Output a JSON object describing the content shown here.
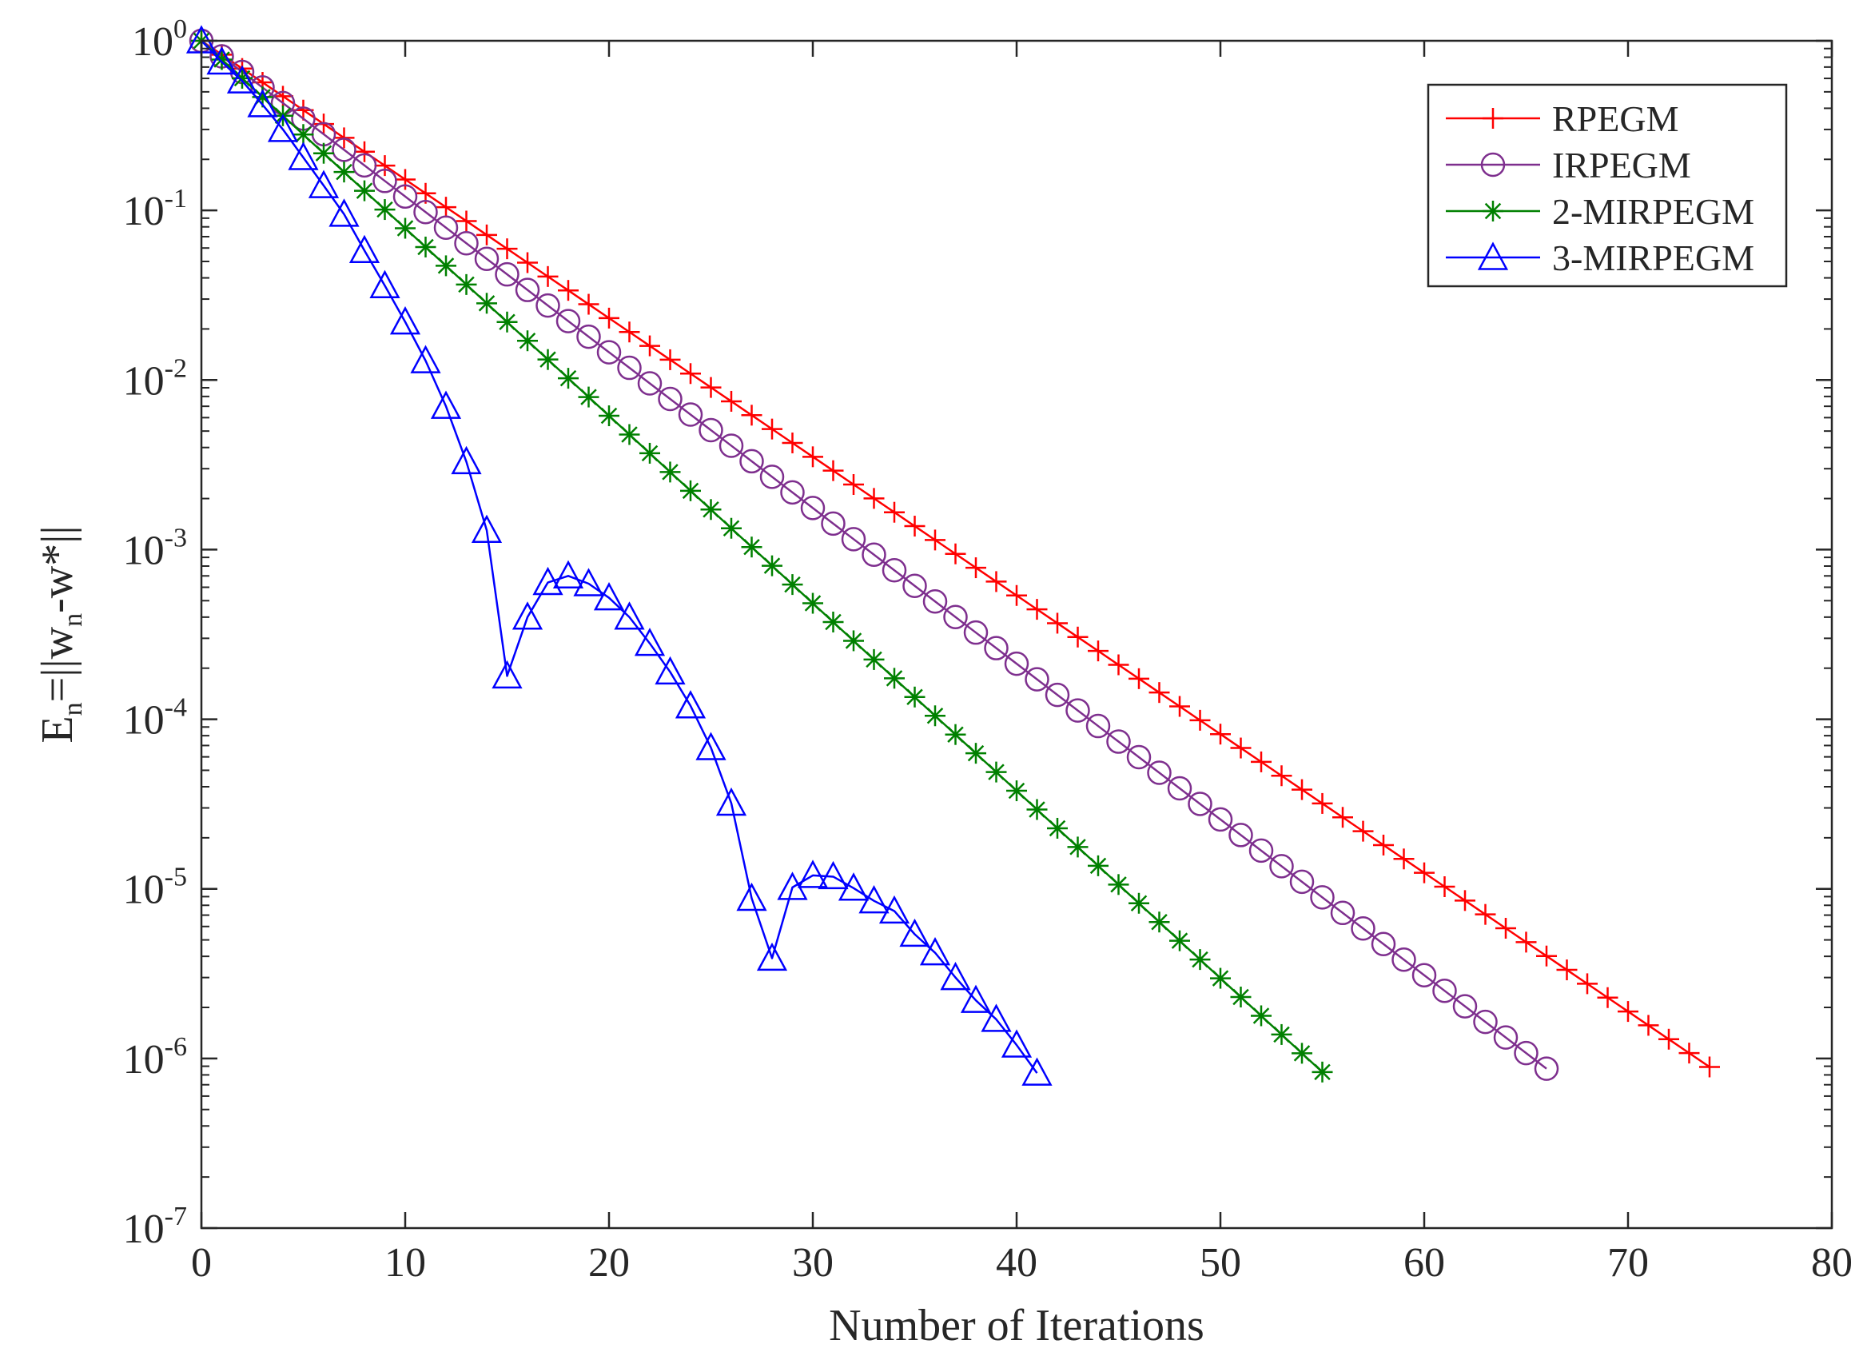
{
  "chart_data": {
    "type": "line",
    "title": "",
    "xlabel": "Number of Iterations",
    "ylabel": {
      "E": "E",
      "sub_n": "n",
      "eq": "=||w",
      "sub_n2": "n",
      "rest": "-w*||"
    },
    "xscale": "linear",
    "yscale": "log",
    "xlim": [
      0,
      80
    ],
    "ylim": [
      1e-07,
      1
    ],
    "x_ticks": [
      0,
      10,
      20,
      30,
      40,
      50,
      60,
      70,
      80
    ],
    "x_tick_labels": [
      "0",
      "10",
      "20",
      "30",
      "40",
      "50",
      "60",
      "70",
      "80"
    ],
    "y_ticks": [
      {
        "value": 1,
        "base": "10",
        "exp": "0"
      },
      {
        "value": 0.1,
        "base": "10",
        "exp": "-1"
      },
      {
        "value": 0.01,
        "base": "10",
        "exp": "-2"
      },
      {
        "value": 0.001,
        "base": "10",
        "exp": "-3"
      },
      {
        "value": 0.0001,
        "base": "10",
        "exp": "-4"
      },
      {
        "value": 1e-05,
        "base": "10",
        "exp": "-5"
      },
      {
        "value": 1e-06,
        "base": "10",
        "exp": "-6"
      },
      {
        "value": 1e-07,
        "base": "10",
        "exp": "-7"
      }
    ],
    "grid": false,
    "legend_position": "top-right",
    "series": [
      {
        "name": "RPEGM",
        "color": "#ff0000",
        "marker": "plus",
        "x_start": 0,
        "x_end": 74,
        "log10_start": 0,
        "log10_end": -6.05
      },
      {
        "name": "IRPEGM",
        "color": "#7e2f8e",
        "marker": "circle",
        "x_start": 0,
        "x_end": 66,
        "log10_start": 0,
        "log10_end": -6.06
      },
      {
        "name": "2-MIRPEGM",
        "color": "#008000",
        "marker": "asterisk",
        "x_start": 0,
        "x_end": 55,
        "log10_start": 0,
        "log10_end": -6.08
      },
      {
        "name": "3-MIRPEGM",
        "color": "#0000ff",
        "marker": "triangle",
        "x": [
          0,
          1,
          2,
          3,
          4,
          5,
          6,
          7,
          8,
          9,
          10,
          11,
          12,
          13,
          14,
          15,
          16,
          17,
          18,
          19,
          20,
          21,
          22,
          23,
          24,
          25,
          26,
          27,
          28,
          29,
          30,
          31,
          32,
          33,
          34,
          35,
          36,
          37,
          38,
          39,
          40,
          41
        ],
        "y": [
          1.0,
          0.75,
          0.58,
          0.42,
          0.3,
          0.205,
          0.14,
          0.095,
          0.058,
          0.036,
          0.022,
          0.013,
          0.007,
          0.0033,
          0.0013,
          0.00018,
          0.0004,
          0.00064,
          0.0007,
          0.00063,
          0.00052,
          0.0004,
          0.00028,
          0.00019,
          0.00012,
          6.8e-05,
          3.2e-05,
          8.8e-06,
          3.9e-06,
          1.02e-05,
          1.2e-05,
          1.18e-05,
          1.01e-05,
          8.5e-06,
          7.4e-06,
          5.4e-06,
          4.2e-06,
          3e-06,
          2.2e-06,
          1.7e-06,
          1.2e-06,
          8.2e-07
        ]
      }
    ]
  }
}
